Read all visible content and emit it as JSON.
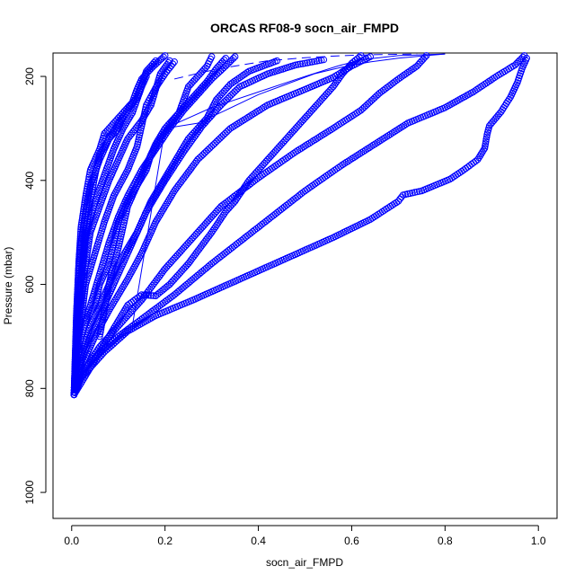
{
  "chart_data": {
    "type": "scatter",
    "title": "ORCAS RF08-9 socn_air_FMPD",
    "xlabel": "socn_air_FMPD",
    "ylabel": "Pressure (mbar)",
    "xlim": [
      -0.04,
      1.04
    ],
    "ylim": [
      1050,
      155
    ],
    "y_reversed": true,
    "x_ticks": [
      0.0,
      0.2,
      0.4,
      0.6,
      0.8,
      1.0
    ],
    "x_tick_labels": [
      "0.0",
      "0.2",
      "0.4",
      "0.6",
      "0.8",
      "1.0"
    ],
    "y_ticks": [
      200,
      400,
      600,
      800,
      1000
    ],
    "y_tick_labels": [
      "200",
      "400",
      "600",
      "800",
      "1000"
    ],
    "grid": false,
    "marker": "open-circle",
    "color": "#0000ff",
    "series": [
      {
        "points": [
          [
            0.005,
            812
          ],
          [
            0.02,
            780
          ],
          [
            0.04,
            760
          ],
          [
            0.07,
            730
          ],
          [
            0.12,
            690
          ],
          [
            0.18,
            660
          ],
          [
            0.26,
            630
          ],
          [
            0.36,
            590
          ],
          [
            0.46,
            550
          ],
          [
            0.56,
            510
          ],
          [
            0.64,
            475
          ],
          [
            0.7,
            440
          ],
          [
            0.71,
            428
          ],
          [
            0.75,
            420
          ],
          [
            0.81,
            398
          ],
          [
            0.84,
            380
          ],
          [
            0.87,
            360
          ],
          [
            0.885,
            338
          ],
          [
            0.89,
            312
          ],
          [
            0.895,
            295
          ],
          [
            0.92,
            268
          ],
          [
            0.94,
            240
          ],
          [
            0.955,
            212
          ],
          [
            0.965,
            185
          ],
          [
            0.975,
            165
          ]
        ]
      },
      {
        "points": [
          [
            0.005,
            812
          ],
          [
            0.02,
            770
          ],
          [
            0.05,
            740
          ],
          [
            0.1,
            700
          ],
          [
            0.16,
            660
          ],
          [
            0.22,
            620
          ],
          [
            0.3,
            560
          ],
          [
            0.4,
            490
          ],
          [
            0.5,
            420
          ],
          [
            0.58,
            370
          ],
          [
            0.65,
            330
          ],
          [
            0.72,
            290
          ],
          [
            0.8,
            260
          ],
          [
            0.86,
            230
          ],
          [
            0.91,
            200
          ],
          [
            0.95,
            178
          ],
          [
            0.97,
            160
          ]
        ]
      },
      {
        "points": [
          [
            0.005,
            812
          ],
          [
            0.03,
            760
          ],
          [
            0.06,
            720
          ],
          [
            0.1,
            680
          ],
          [
            0.15,
            630
          ],
          [
            0.2,
            570
          ],
          [
            0.26,
            510
          ],
          [
            0.32,
            450
          ],
          [
            0.4,
            395
          ],
          [
            0.48,
            345
          ],
          [
            0.56,
            300
          ],
          [
            0.62,
            265
          ],
          [
            0.66,
            232
          ],
          [
            0.7,
            205
          ],
          [
            0.74,
            180
          ],
          [
            0.76,
            160
          ]
        ]
      },
      {
        "points": [
          [
            0.005,
            812
          ],
          [
            0.02,
            760
          ],
          [
            0.05,
            700
          ],
          [
            0.08,
            650
          ],
          [
            0.12,
            590
          ],
          [
            0.15,
            540
          ],
          [
            0.18,
            480
          ],
          [
            0.22,
            420
          ],
          [
            0.27,
            360
          ],
          [
            0.34,
            300
          ],
          [
            0.42,
            255
          ],
          [
            0.5,
            225
          ],
          [
            0.56,
            202
          ],
          [
            0.6,
            180
          ],
          [
            0.64,
            162
          ]
        ]
      },
      {
        "points": [
          [
            0.005,
            812
          ],
          [
            0.02,
            750
          ],
          [
            0.04,
            700
          ],
          [
            0.07,
            640
          ],
          [
            0.1,
            580
          ],
          [
            0.13,
            520
          ],
          [
            0.16,
            460
          ],
          [
            0.2,
            400
          ],
          [
            0.24,
            345
          ],
          [
            0.28,
            295
          ],
          [
            0.32,
            255
          ],
          [
            0.36,
            220
          ],
          [
            0.42,
            195
          ],
          [
            0.48,
            178
          ],
          [
            0.54,
            168
          ]
        ]
      },
      {
        "points": [
          [
            0.005,
            812
          ],
          [
            0.02,
            740
          ],
          [
            0.04,
            680
          ],
          [
            0.07,
            620
          ],
          [
            0.1,
            560
          ],
          [
            0.14,
            500
          ],
          [
            0.17,
            440
          ],
          [
            0.21,
            380
          ],
          [
            0.25,
            320
          ],
          [
            0.29,
            280
          ],
          [
            0.31,
            245
          ],
          [
            0.34,
            215
          ],
          [
            0.38,
            190
          ],
          [
            0.44,
            170
          ]
        ]
      },
      {
        "points": [
          [
            0.005,
            812
          ],
          [
            0.01,
            760
          ],
          [
            0.02,
            700
          ],
          [
            0.04,
            640
          ],
          [
            0.06,
            580
          ],
          [
            0.08,
            520
          ],
          [
            0.1,
            470
          ],
          [
            0.12,
            430
          ],
          [
            0.15,
            380
          ],
          [
            0.18,
            340
          ],
          [
            0.21,
            300
          ],
          [
            0.24,
            265
          ],
          [
            0.27,
            235
          ],
          [
            0.3,
            205
          ],
          [
            0.33,
            180
          ],
          [
            0.35,
            162
          ]
        ]
      },
      {
        "points": [
          [
            0.005,
            812
          ],
          [
            0.01,
            740
          ],
          [
            0.02,
            670
          ],
          [
            0.03,
            600
          ],
          [
            0.05,
            540
          ],
          [
            0.07,
            480
          ],
          [
            0.09,
            430
          ],
          [
            0.12,
            380
          ],
          [
            0.14,
            335
          ],
          [
            0.15,
            295
          ],
          [
            0.16,
            255
          ],
          [
            0.18,
            222
          ],
          [
            0.2,
            195
          ],
          [
            0.22,
            172
          ]
        ]
      },
      {
        "points": [
          [
            0.005,
            812
          ],
          [
            0.01,
            720
          ],
          [
            0.02,
            640
          ],
          [
            0.03,
            560
          ],
          [
            0.04,
            500
          ],
          [
            0.06,
            450
          ],
          [
            0.08,
            400
          ],
          [
            0.1,
            360
          ],
          [
            0.12,
            320
          ],
          [
            0.15,
            285
          ],
          [
            0.17,
            255
          ],
          [
            0.18,
            225
          ],
          [
            0.19,
            195
          ],
          [
            0.21,
            170
          ]
        ]
      },
      {
        "points": [
          [
            0.005,
            812
          ],
          [
            0.01,
            700
          ],
          [
            0.02,
            600
          ],
          [
            0.03,
            510
          ],
          [
            0.05,
            440
          ],
          [
            0.07,
            390
          ],
          [
            0.09,
            340
          ],
          [
            0.11,
            300
          ],
          [
            0.13,
            270
          ],
          [
            0.14,
            245
          ],
          [
            0.15,
            220
          ],
          [
            0.16,
            200
          ]
        ]
      },
      {
        "points": [
          [
            0.005,
            812
          ],
          [
            0.01,
            690
          ],
          [
            0.015,
            600
          ],
          [
            0.02,
            520
          ],
          [
            0.03,
            460
          ],
          [
            0.04,
            410
          ],
          [
            0.06,
            360
          ],
          [
            0.08,
            320
          ],
          [
            0.1,
            290
          ],
          [
            0.12,
            265
          ],
          [
            0.14,
            240
          ],
          [
            0.15,
            215
          ],
          [
            0.16,
            190
          ],
          [
            0.18,
            170
          ]
        ]
      },
      {
        "points": [
          [
            0.005,
            812
          ],
          [
            0.01,
            680
          ],
          [
            0.02,
            580
          ],
          [
            0.03,
            500
          ],
          [
            0.04,
            440
          ],
          [
            0.05,
            390
          ],
          [
            0.06,
            350
          ],
          [
            0.08,
            320
          ],
          [
            0.1,
            300
          ],
          [
            0.11,
            280
          ]
        ]
      },
      {
        "points": [
          [
            0.005,
            812
          ],
          [
            0.01,
            660
          ],
          [
            0.015,
            560
          ],
          [
            0.02,
            490
          ],
          [
            0.03,
            430
          ],
          [
            0.04,
            380
          ],
          [
            0.06,
            340
          ],
          [
            0.07,
            310
          ],
          [
            0.09,
            290
          ],
          [
            0.11,
            270
          ],
          [
            0.13,
            250
          ],
          [
            0.14,
            225
          ],
          [
            0.15,
            205
          ],
          [
            0.17,
            185
          ],
          [
            0.19,
            168
          ],
          [
            0.2,
            160
          ]
        ]
      },
      {
        "points": [
          [
            0.005,
            812
          ],
          [
            0.04,
            760
          ],
          [
            0.08,
            700
          ],
          [
            0.1,
            670
          ],
          [
            0.12,
            640
          ],
          [
            0.15,
            620
          ],
          [
            0.18,
            622
          ],
          [
            0.21,
            600
          ],
          [
            0.25,
            560
          ],
          [
            0.3,
            500
          ],
          [
            0.33,
            460
          ],
          [
            0.35,
            440
          ],
          [
            0.38,
            400
          ],
          [
            0.42,
            360
          ],
          [
            0.46,
            320
          ],
          [
            0.5,
            280
          ],
          [
            0.53,
            250
          ],
          [
            0.56,
            220
          ],
          [
            0.58,
            195
          ],
          [
            0.6,
            175
          ],
          [
            0.62,
            160
          ]
        ]
      },
      {
        "points": [
          [
            0.03,
            670
          ],
          [
            0.05,
            640
          ],
          [
            0.06,
            600
          ],
          [
            0.08,
            560
          ],
          [
            0.09,
            520
          ],
          [
            0.1,
            480
          ],
          [
            0.12,
            440
          ],
          [
            0.14,
            410
          ],
          [
            0.16,
            370
          ],
          [
            0.18,
            330
          ],
          [
            0.2,
            300
          ],
          [
            0.23,
            270
          ],
          [
            0.26,
            240
          ],
          [
            0.29,
            210
          ],
          [
            0.31,
            185
          ],
          [
            0.33,
            165
          ]
        ]
      },
      {
        "points": [
          [
            0.06,
            700
          ],
          [
            0.07,
            650
          ],
          [
            0.08,
            600
          ],
          [
            0.09,
            560
          ],
          [
            0.1,
            530
          ],
          [
            0.11,
            490
          ],
          [
            0.12,
            450
          ],
          [
            0.14,
            410
          ],
          [
            0.16,
            380
          ],
          [
            0.17,
            350
          ],
          [
            0.19,
            320
          ],
          [
            0.21,
            295
          ],
          [
            0.23,
            270
          ],
          [
            0.24,
            245
          ],
          [
            0.25,
            220
          ],
          [
            0.27,
            200
          ],
          [
            0.29,
            180
          ],
          [
            0.3,
            162
          ]
        ]
      }
    ],
    "lines": [
      {
        "points": [
          [
            0.13,
            680
          ],
          [
            0.2,
            300
          ],
          [
            0.27,
            290
          ],
          [
            0.33,
            265
          ],
          [
            0.4,
            235
          ],
          [
            0.46,
            215
          ],
          [
            0.52,
            195
          ],
          [
            0.58,
            182
          ],
          [
            0.64,
            172
          ],
          [
            0.7,
            165
          ],
          [
            0.76,
            160
          ],
          [
            0.8,
            157
          ]
        ]
      },
      {
        "points": [
          [
            0.2,
            300
          ],
          [
            0.3,
            260
          ],
          [
            0.4,
            230
          ],
          [
            0.5,
            200
          ],
          [
            0.57,
            180
          ],
          [
            0.62,
            168
          ],
          [
            0.7,
            160
          ],
          [
            0.8,
            157
          ]
        ]
      }
    ],
    "dashed_line": {
      "points": [
        [
          0.22,
          205
        ],
        [
          0.28,
          192
        ],
        [
          0.35,
          180
        ],
        [
          0.42,
          170
        ],
        [
          0.5,
          164
        ],
        [
          0.58,
          160
        ],
        [
          0.66,
          158
        ],
        [
          0.74,
          157
        ]
      ]
    }
  }
}
